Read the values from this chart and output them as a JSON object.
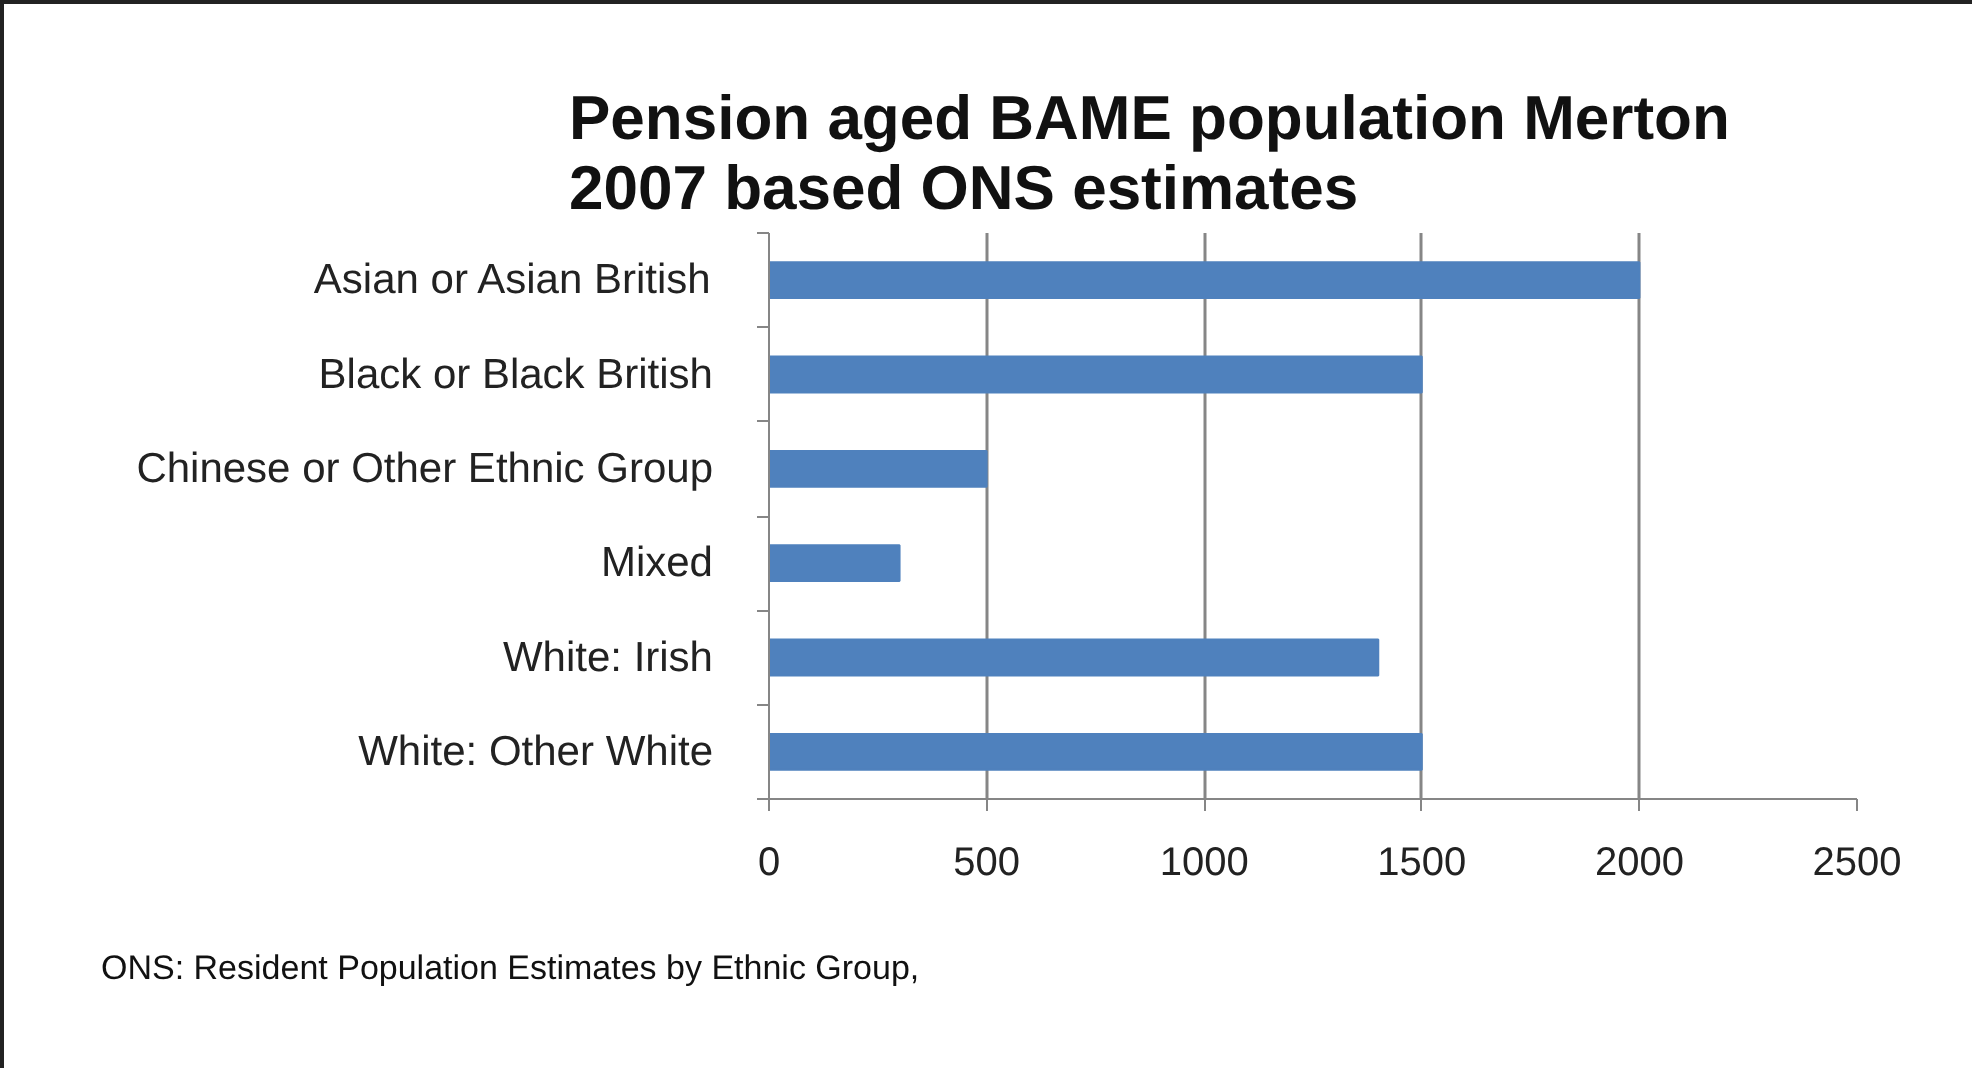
{
  "chart_data": {
    "type": "bar",
    "orientation": "horizontal",
    "title": "Pension aged BAME population Merton 2007 based ONS estimates",
    "categories": [
      "Asian or Asian British",
      "Black or Black British",
      "Chinese or Other Ethnic Group",
      "Mixed",
      "White: Irish",
      "White: Other White"
    ],
    "values": [
      2000,
      1500,
      500,
      300,
      1400,
      1500
    ],
    "color": "#4f81bd",
    "xlim": [
      0,
      2500
    ],
    "xticks": [
      0,
      500,
      1000,
      1500,
      2000,
      2500
    ],
    "grid": "x",
    "annotations": [
      "ONS: Resident Population Estimates by Ethnic Group,"
    ]
  }
}
